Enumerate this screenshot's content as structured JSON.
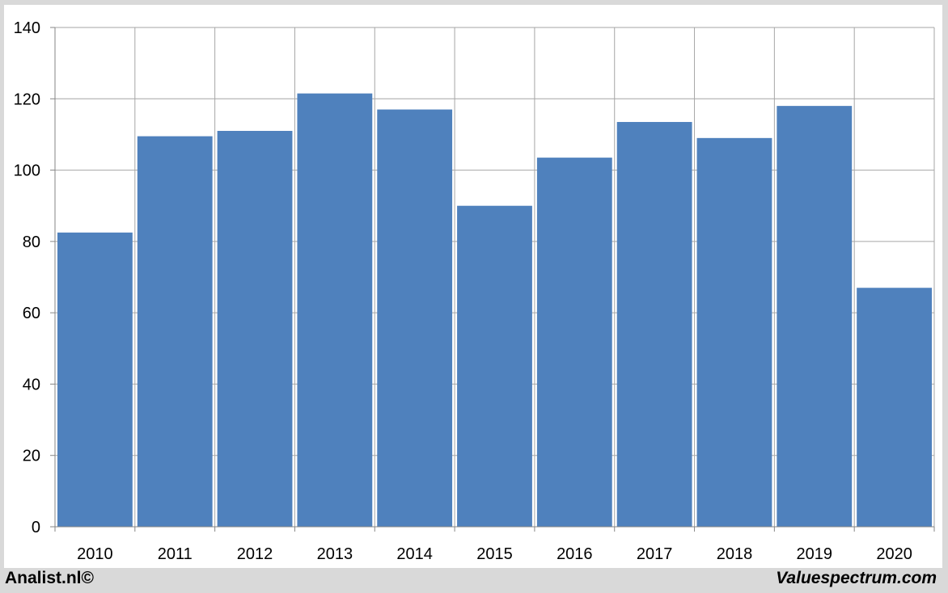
{
  "footer": {
    "left_credit": "Analist.nl©",
    "right_credit": "Valuespectrum.com"
  },
  "colors": {
    "bar": "#4f81bd",
    "grid": "#a6a6a6",
    "axis": "#868686",
    "background": "#ffffff",
    "frame": "#d9d9d9"
  },
  "chart_data": {
    "type": "bar",
    "categories": [
      "2010",
      "2011",
      "2012",
      "2013",
      "2014",
      "2015",
      "2016",
      "2017",
      "2018",
      "2019",
      "2020"
    ],
    "values": [
      82.5,
      109.5,
      111,
      121.5,
      117,
      90,
      103.5,
      113.5,
      109,
      118,
      67
    ],
    "title": "",
    "xlabel": "",
    "ylabel": "",
    "ylim": [
      0,
      140
    ],
    "yticks": [
      "0",
      "20",
      "40",
      "60",
      "80",
      "100",
      "120",
      "140"
    ],
    "grid": true,
    "legend": "none"
  }
}
